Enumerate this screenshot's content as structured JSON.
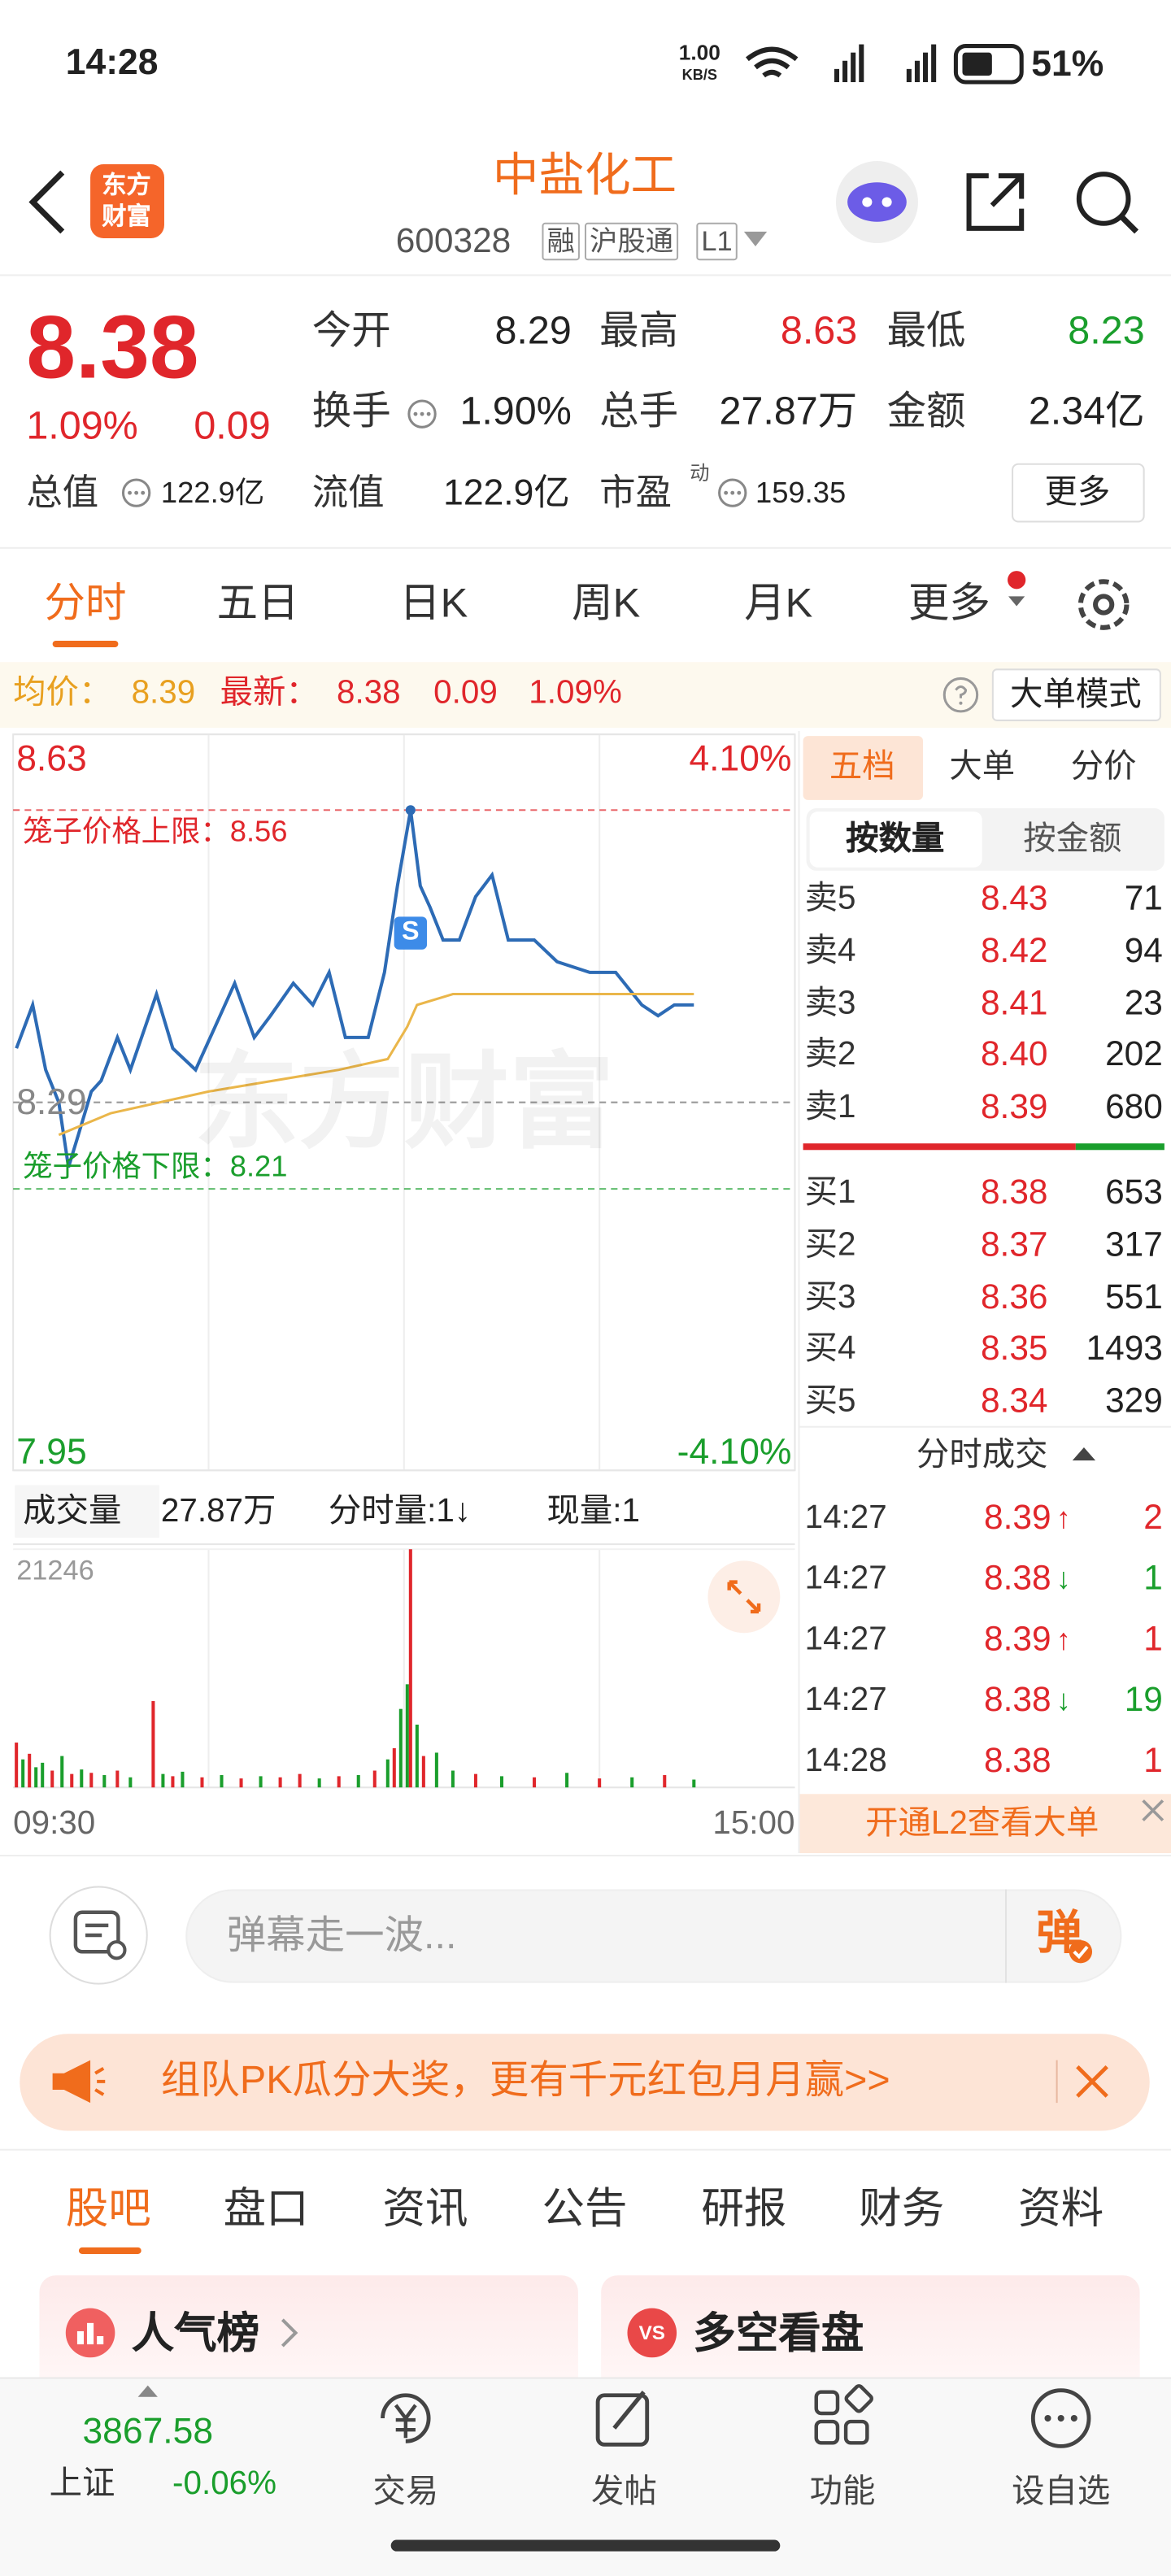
{
  "status_bar": {
    "time": "14:28",
    "net_speed": "1.00",
    "net_unit": "KB/S",
    "battery": "51%"
  },
  "header": {
    "logo": [
      "东方",
      "财富"
    ],
    "title": "中盐化工",
    "code": "600328",
    "tags": [
      "融",
      "沪股通",
      "L1"
    ]
  },
  "quote": {
    "price": "8.38",
    "change_pct": "1.09%",
    "change": "0.09",
    "fields": [
      [
        {
          "label": "今开",
          "value": "8.29"
        },
        {
          "label": "最高",
          "value": "8.63"
        },
        {
          "label": "最低",
          "value": "8.23"
        }
      ],
      [
        {
          "label": "换手",
          "value": "1.90%"
        },
        {
          "label": "总手",
          "value": "27.87万"
        },
        {
          "label": "金额",
          "value": "2.34亿"
        }
      ]
    ],
    "market_cap": {
      "label": "总值",
      "value": "122.9亿"
    },
    "float_cap": {
      "label": "流值",
      "value": "122.9亿"
    },
    "pe": {
      "label": "市盈",
      "sup": "动",
      "value": "159.35"
    },
    "more": "更多"
  },
  "tabs": [
    "分时",
    "五日",
    "日K",
    "周K",
    "月K",
    "更多"
  ],
  "info_bar": {
    "avg_label": "均价：",
    "avg": "8.39",
    "last_label": "最新：",
    "last": "8.38",
    "change": "0.09",
    "change_pct": "1.09%",
    "mode": "大单模式"
  },
  "chart_data": [
    {
      "type": "line",
      "ylim": [
        7.95,
        8.63
      ],
      "yticks": [
        8.63,
        8.29,
        7.95
      ],
      "xlim": [
        0,
        240
      ],
      "right_labels": [
        "4.10%",
        "-4.10%"
      ],
      "upper_limit": {
        "label": "笼子价格上限：8.56",
        "value": 8.56
      },
      "lower_limit": {
        "label": "笼子价格下限：8.21",
        "value": 8.21
      },
      "watermark": "东方财富",
      "marker": "S",
      "series": [
        {
          "color": "#2d6bb5",
          "x": [
            1,
            6,
            10,
            14,
            17,
            20,
            24,
            27,
            32,
            36,
            44,
            49,
            56,
            62,
            68,
            74,
            79,
            86,
            92,
            97,
            102,
            109,
            114,
            118,
            122,
            125,
            128,
            132,
            137,
            142,
            147,
            152,
            160,
            167,
            177,
            185,
            193,
            198,
            203,
            209
          ],
          "values": [
            8.34,
            8.38,
            8.32,
            8.29,
            8.23,
            8.26,
            8.3,
            8.31,
            8.35,
            8.32,
            8.39,
            8.34,
            8.32,
            8.36,
            8.4,
            8.35,
            8.37,
            8.4,
            8.38,
            8.41,
            8.35,
            8.35,
            8.41,
            8.49,
            8.56,
            8.49,
            8.47,
            8.44,
            8.44,
            8.48,
            8.5,
            8.44,
            8.44,
            8.42,
            8.41,
            8.41,
            8.38,
            8.37,
            8.38,
            8.38
          ]
        },
        {
          "color": "#eab64a",
          "x": [
            14,
            30,
            60,
            100,
            115,
            121,
            124,
            135,
            209
          ],
          "values": [
            8.26,
            8.28,
            8.3,
            8.32,
            8.33,
            8.36,
            8.38,
            8.39,
            8.39
          ]
        }
      ]
    },
    {
      "type": "bar",
      "title": "成交量",
      "total": "27.87万",
      "period": "分时量:1↓",
      "current": "现量:1",
      "ylim": [
        0,
        21246
      ],
      "yticks": [
        21246
      ],
      "xlim": [
        0,
        240
      ],
      "xticks": [
        {
          "value": 0,
          "label": "09:30"
        },
        {
          "value": 240,
          "label": "15:00"
        }
      ],
      "x": [
        1,
        3,
        5,
        7,
        9,
        12,
        15,
        18,
        21,
        24,
        28,
        32,
        36,
        43,
        46,
        49,
        52,
        58,
        64,
        70,
        76,
        82,
        88,
        94,
        100,
        106,
        111,
        115,
        117,
        119,
        121,
        122,
        124,
        126,
        130,
        135,
        142,
        150,
        160,
        170,
        180,
        190,
        200,
        209
      ],
      "values": [
        4000,
        2500,
        3000,
        1800,
        2200,
        1500,
        2800,
        1200,
        1600,
        1300,
        1100,
        1500,
        900,
        7700,
        1200,
        1000,
        1400,
        900,
        1100,
        800,
        1000,
        900,
        1200,
        800,
        1000,
        1100,
        1500,
        2500,
        3500,
        7000,
        9200,
        21246,
        5600,
        2800,
        3100,
        1500,
        1200,
        1000,
        900,
        1300,
        800,
        900,
        1100,
        700
      ],
      "colors": [
        "#e0262b",
        "#1a9e2c",
        "#e0262b",
        "#1a9e2c",
        "#1a9e2c",
        "#e0262b",
        "#1a9e2c",
        "#e0262b",
        "#1a9e2c",
        "#e0262b",
        "#1a9e2c",
        "#e0262b",
        "#1a9e2c",
        "#e0262b",
        "#1a9e2c",
        "#e0262b",
        "#1a9e2c",
        "#e0262b",
        "#1a9e2c",
        "#e0262b",
        "#1a9e2c",
        "#e0262b",
        "#e0262b",
        "#1a9e2c",
        "#e0262b",
        "#1a9e2c",
        "#e0262b",
        "#1a9e2c",
        "#e0262b",
        "#1a9e2c",
        "#1a9e2c",
        "#e0262b",
        "#1a9e2c",
        "#e0262b",
        "#1a9e2c",
        "#1a9e2c",
        "#e0262b",
        "#1a9e2c",
        "#e0262b",
        "#1a9e2c",
        "#e0262b",
        "#1a9e2c",
        "#e0262b",
        "#1a9e2c"
      ]
    }
  ],
  "order_book": {
    "tabs": [
      "五档",
      "大单",
      "分价"
    ],
    "modes": [
      "按数量",
      "按金额"
    ],
    "asks": [
      [
        "卖5",
        "8.43",
        "71"
      ],
      [
        "卖4",
        "8.42",
        "94"
      ],
      [
        "卖3",
        "8.41",
        "23"
      ],
      [
        "卖2",
        "8.40",
        "202"
      ],
      [
        "卖1",
        "8.39",
        "680"
      ]
    ],
    "bids": [
      [
        "买1",
        "8.38",
        "653"
      ],
      [
        "买2",
        "8.37",
        "317"
      ],
      [
        "买3",
        "8.36",
        "551"
      ],
      [
        "买4",
        "8.35",
        "1493"
      ],
      [
        "买5",
        "8.34",
        "329"
      ]
    ],
    "trades_title": "分时成交",
    "trades": [
      {
        "time": "14:27",
        "price": "8.39",
        "arrow": "↑",
        "vol": "2"
      },
      {
        "time": "14:27",
        "price": "8.38",
        "arrow": "↓",
        "vol": "1"
      },
      {
        "time": "14:27",
        "price": "8.39",
        "arrow": "↑",
        "vol": "1"
      },
      {
        "time": "14:27",
        "price": "8.38",
        "arrow": "↓",
        "vol": "19"
      },
      {
        "time": "14:28",
        "price": "8.38",
        "vol": "1"
      }
    ],
    "l2": "开通L2查看大单"
  },
  "danmu": {
    "placeholder": "弹幕走一波...",
    "button": "弹"
  },
  "banner": {
    "text": "组队PK瓜分大奖，更有千元红包月月赢>>"
  },
  "sections": [
    "股吧",
    "盘口",
    "资讯",
    "公告",
    "研报",
    "财务",
    "资料"
  ],
  "cards": [
    {
      "title": "人气榜"
    },
    {
      "title": "多空看盘",
      "icon": "VS"
    }
  ],
  "bottom_bar": {
    "index_value": "3867.58",
    "index_name": "上证",
    "index_change": "-0.06%",
    "items": [
      "交易",
      "发帖",
      "功能",
      "设自选"
    ]
  }
}
